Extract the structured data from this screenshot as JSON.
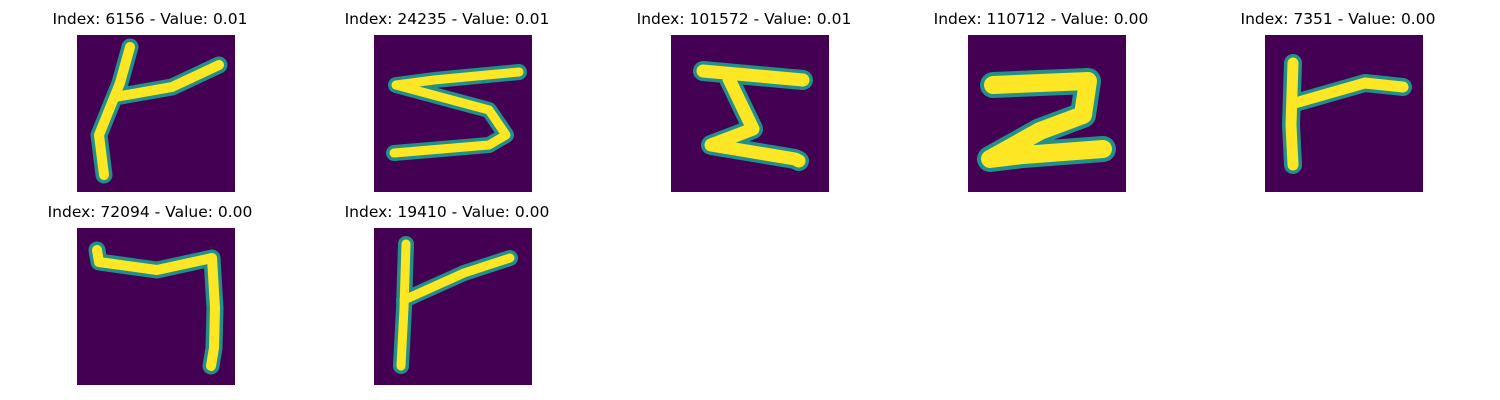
{
  "colors": {
    "background": "#440154",
    "stroke_edge": "#21908c",
    "stroke_core": "#fde725"
  },
  "panels": [
    {
      "title": "Index: 6156 - Value: 0.01",
      "depicts": "handwritten-digit-4-like"
    },
    {
      "title": "Index: 24235 - Value: 0.01",
      "depicts": "handwritten-digit-5-like"
    },
    {
      "title": "Index: 101572 - Value: 0.01",
      "depicts": "handwritten-digit-5-like"
    },
    {
      "title": "Index: 110712 - Value: 0.00",
      "depicts": "handwritten-digit-2"
    },
    {
      "title": "Index: 7351 - Value: 0.00",
      "depicts": "handwritten-digit-4-like"
    },
    {
      "title": "Index: 72094 - Value: 0.00",
      "depicts": "handwritten-digit-7"
    },
    {
      "title": "Index: 19410 - Value: 0.00",
      "depicts": "handwritten-digit-4-like"
    }
  ]
}
